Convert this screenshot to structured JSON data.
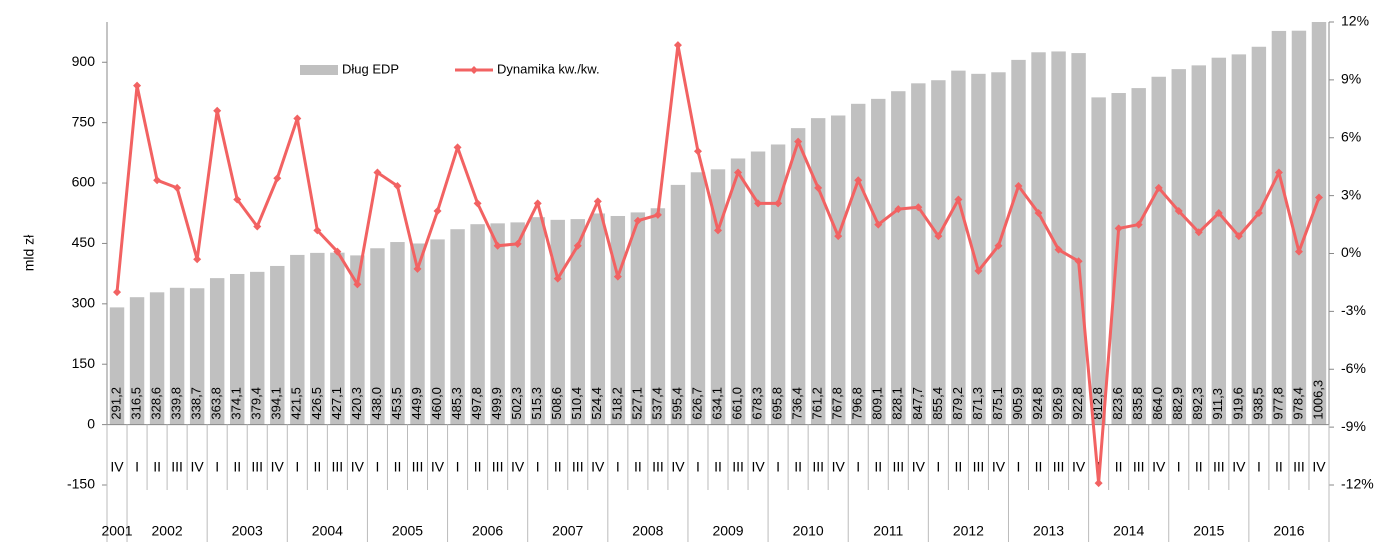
{
  "chart_data": {
    "type": "bar",
    "y_label": "mld zł",
    "categories": [
      "IV",
      "I",
      "II",
      "III",
      "IV",
      "I",
      "II",
      "III",
      "IV",
      "I",
      "II",
      "III",
      "IV",
      "I",
      "II",
      "III",
      "IV",
      "I",
      "II",
      "III",
      "IV",
      "I",
      "II",
      "III",
      "IV",
      "I",
      "II",
      "III",
      "IV",
      "I",
      "II",
      "III",
      "IV",
      "I",
      "II",
      "III",
      "IV",
      "I",
      "II",
      "III",
      "IV",
      "I",
      "II",
      "III",
      "IV",
      "I",
      "II",
      "III",
      "IV",
      "I",
      "II",
      "III",
      "IV",
      "I",
      "II",
      "III",
      "IV",
      "I",
      "II",
      "III",
      "IV"
    ],
    "x_groups": [
      "2001",
      "2002",
      "2003",
      "2004",
      "2005",
      "2006",
      "2007",
      "2008",
      "2009",
      "2010",
      "2011",
      "2012",
      "2013",
      "2014",
      "2015",
      "2016"
    ],
    "series": [
      {
        "name": "Dług EDP",
        "type": "bar",
        "color": "#c0c0c0",
        "values": [
          291.2,
          316.5,
          328.6,
          339.8,
          338.7,
          363.8,
          374.1,
          379.4,
          394.1,
          421.5,
          426.5,
          427.1,
          420.3,
          438.0,
          453.5,
          449.9,
          460.0,
          485.3,
          497.8,
          499.9,
          502.3,
          515.3,
          508.6,
          510.4,
          524.4,
          518.2,
          527.1,
          537.4,
          595.4,
          626.7,
          634.1,
          661.0,
          678.3,
          695.8,
          736.4,
          761.2,
          767.8,
          796.8,
          809.1,
          828.1,
          847.7,
          855.4,
          879.2,
          871.3,
          875.1,
          905.9,
          924.8,
          926.9,
          922.8,
          812.8,
          823.6,
          835.8,
          864.0,
          882.9,
          892.3,
          911.3,
          919.6,
          938.5,
          977.8,
          978.4,
          1006.3
        ],
        "value_labels": [
          "291,2",
          "316,5",
          "328,6",
          "339,8",
          "338,7",
          "363,8",
          "374,1",
          "379,4",
          "394,1",
          "421,5",
          "426,5",
          "427,1",
          "420,3",
          "438,0",
          "453,5",
          "449,9",
          "460,0",
          "485,3",
          "497,8",
          "499,9",
          "502,3",
          "515,3",
          "508,6",
          "510,4",
          "524,4",
          "518,2",
          "527,1",
          "537,4",
          "595,4",
          "626,7",
          "634,1",
          "661,0",
          "678,3",
          "695,8",
          "736,4",
          "761,2",
          "767,8",
          "796,8",
          "809,1",
          "828,1",
          "847,7",
          "855,4",
          "879,2",
          "871,3",
          "875,1",
          "905,9",
          "924,8",
          "926,9",
          "922,8",
          "812,8",
          "823,6",
          "835,8",
          "864,0",
          "882,9",
          "892,3",
          "911,3",
          "919,6",
          "938,5",
          "977,8",
          "978,4",
          "1006,3"
        ]
      },
      {
        "name": "Dynamika kw./kw.",
        "type": "line",
        "axis": "y2",
        "color": "#f26262",
        "values": [
          -2.0,
          8.7,
          3.8,
          3.4,
          -0.3,
          7.4,
          2.8,
          1.4,
          3.9,
          7.0,
          1.2,
          0.1,
          -1.6,
          4.2,
          3.5,
          -0.8,
          2.2,
          5.5,
          2.6,
          0.4,
          0.5,
          2.6,
          -1.3,
          0.4,
          2.7,
          -1.2,
          1.7,
          2.0,
          10.8,
          5.3,
          1.2,
          4.2,
          2.6,
          2.6,
          5.8,
          3.4,
          0.9,
          3.8,
          1.5,
          2.3,
          2.4,
          0.9,
          2.8,
          -0.9,
          0.4,
          3.5,
          2.1,
          0.2,
          -0.4,
          -11.9,
          1.3,
          1.5,
          3.4,
          2.2,
          1.1,
          2.1,
          0.9,
          2.1,
          4.2,
          0.1,
          2.9
        ]
      }
    ],
    "ylim": [
      -150,
      1000
    ],
    "yticks": [
      -150,
      0,
      150,
      300,
      450,
      600,
      750,
      900
    ],
    "y2lim": [
      -12,
      12
    ],
    "y2ticks": [
      {
        "value": -12,
        "label": "-12%"
      },
      {
        "value": -9,
        "label": "-9%"
      },
      {
        "value": -6,
        "label": "-6%"
      },
      {
        "value": -3,
        "label": "-3%"
      },
      {
        "value": 0,
        "label": "0%"
      },
      {
        "value": 3,
        "label": "3%"
      },
      {
        "value": 6,
        "label": "6%"
      },
      {
        "value": 9,
        "label": "9%"
      },
      {
        "value": 12,
        "label": "12%"
      }
    ],
    "legend": "top"
  }
}
